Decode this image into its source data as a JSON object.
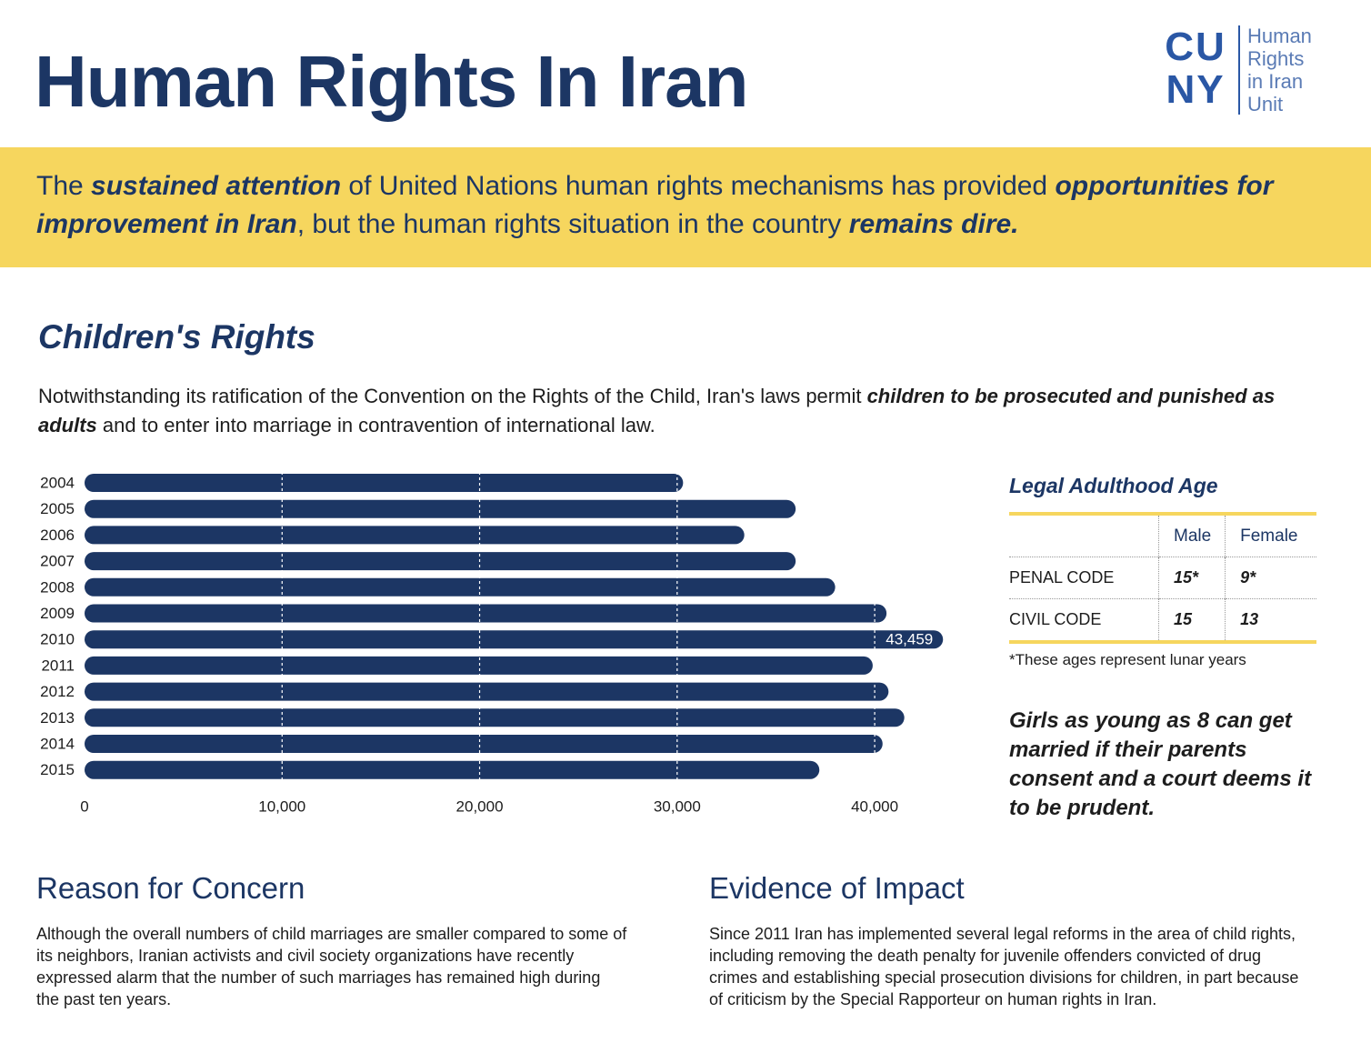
{
  "header": {
    "title": "Human Rights In Iran",
    "logo": {
      "mark": [
        "CU",
        "NY"
      ],
      "text": [
        "Human",
        "Rights",
        "in Iran",
        "Unit"
      ]
    }
  },
  "intro": [
    "The ",
    "sustained attention",
    " of United Nations human rights mechanisms has provided ",
    "opportunities for improvement in Iran",
    ", but the human rights situation in the country ",
    "remains dire."
  ],
  "section": {
    "title": "Children's Rights",
    "text": [
      "Notwithstanding its ratification of the Convention on the Rights of the Child, Iran's laws permit ",
      "children to be prosecuted and punished as adults",
      " and to enter into marriage in contravention of international law."
    ]
  },
  "chart_data": {
    "type": "bar",
    "orientation": "horizontal",
    "categories": [
      "2004",
      "2005",
      "2006",
      "2007",
      "2008",
      "2009",
      "2010",
      "2011",
      "2012",
      "2013",
      "2014",
      "2015"
    ],
    "values": [
      30300,
      36000,
      33400,
      36000,
      38000,
      40600,
      43459,
      39900,
      40700,
      41500,
      40400,
      37200
    ],
    "value_labels": [
      null,
      null,
      null,
      null,
      null,
      null,
      "43,459",
      null,
      null,
      null,
      null,
      null
    ],
    "color": "#1c3664",
    "xlim": [
      0,
      44000
    ],
    "xticks": [
      0,
      {
        "value": 10000,
        "label": "10,000"
      },
      {
        "value": 20000,
        "label": "20,000"
      },
      {
        "value": 30000,
        "label": "30,000"
      },
      {
        "value": 40000,
        "label": "40,000"
      }
    ],
    "grid": true
  },
  "table": {
    "title": "Legal Adulthood Age",
    "columns": [
      "Male",
      "Female"
    ],
    "rows": [
      [
        "PENAL CODE",
        "15*",
        "9*"
      ],
      [
        "CIVIL CODE",
        "15",
        "13"
      ]
    ],
    "note": "*These ages represent lunar years"
  },
  "callout": "Girls as young as 8 can get married if their parents consent and a court deems it to be prudent.",
  "columns": [
    {
      "title": "Reason for Concern",
      "text": "Although the overall numbers of child marriages are smaller compared to some of its neighbors, Iranian activists and civil society organizations have recently expressed alarm that the number of such marriages has remained high during the past ten years."
    },
    {
      "title": "Evidence of Impact",
      "text": "Since 2011 Iran has implemented several legal reforms in the area of child rights, including removing the death penalty for juvenile offenders convicted of drug crimes and establishing special prosecution divisions for children, in part because of criticism by the Special Rapporteur on human rights in Iran."
    }
  ]
}
